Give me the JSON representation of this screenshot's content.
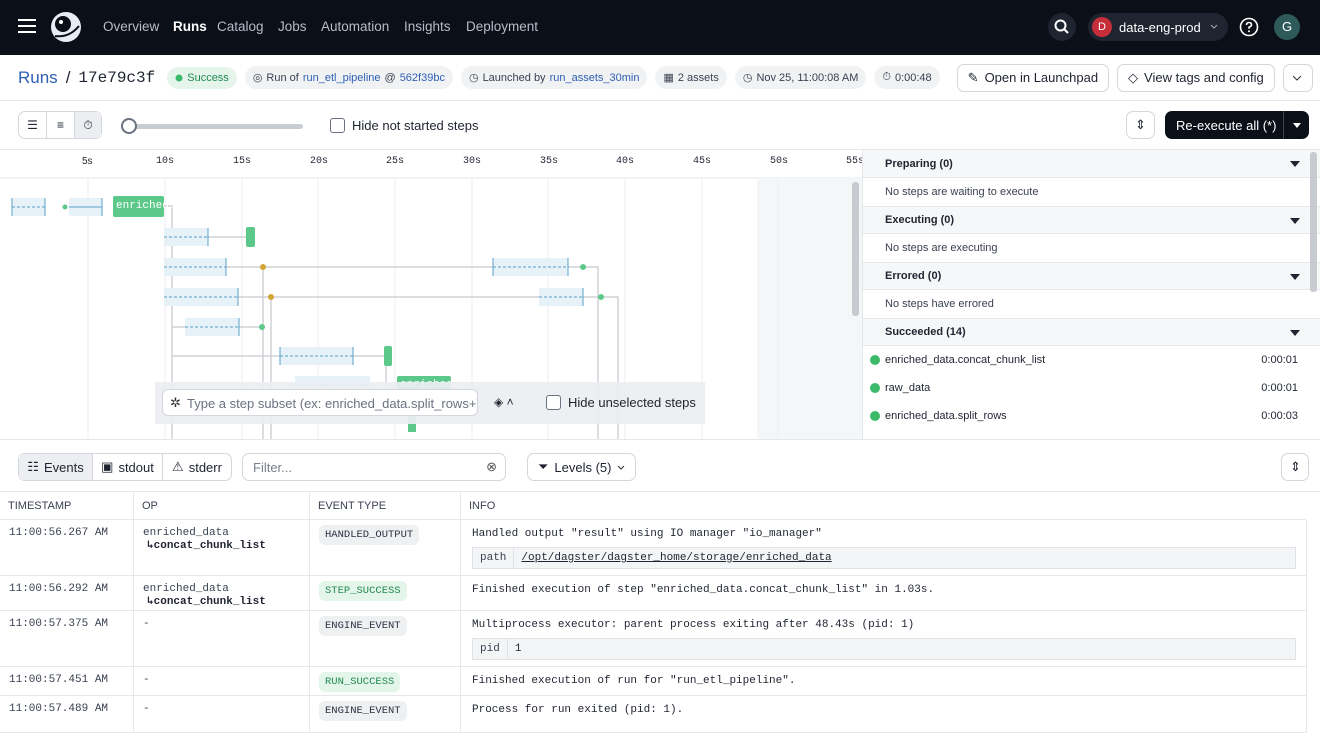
{
  "nav": {
    "items": [
      "Overview",
      "Runs",
      "Catalog",
      "Jobs",
      "Automation",
      "Insights",
      "Deployment"
    ],
    "deployment_initial": "D",
    "deployment": "data-eng-prod",
    "user_initial": "G"
  },
  "header": {
    "breadcrumb": "Runs",
    "separator": "/",
    "run_id": "17e79c3f",
    "status": "Success",
    "run_of_label": "Run of",
    "job": "run_etl_pipeline",
    "at": "@",
    "snapshot": "562f39bc",
    "launched_by_label": "Launched by",
    "launched_by": "run_assets_30min",
    "assets": "2 assets",
    "start_time": "Nov 25, 11:00:08 AM",
    "duration": "0:00:48",
    "buttons": [
      "Open in Launchpad",
      "View tags and config"
    ]
  },
  "toolbar": {
    "hide_not_started": "Hide not started steps",
    "reexecute": "Re-execute all (*)"
  },
  "gantt": {
    "ticks": [
      "5s",
      "10s",
      "15s",
      "20s",
      "25s",
      "30s",
      "35s",
      "40s",
      "45s",
      "50s",
      "55s"
    ],
    "step_labels": [
      "enriched…",
      "enriched…"
    ],
    "subset_placeholder": "Type a step subset (ex: enriched_data.split_rows+)",
    "hide_unselected": "Hide unselected steps"
  },
  "steps_panel": {
    "sections": [
      {
        "title": "Preparing (0)",
        "empty": "No steps are waiting to execute"
      },
      {
        "title": "Executing (0)",
        "empty": "No steps are executing"
      },
      {
        "title": "Errored (0)",
        "empty": "No steps have errored"
      },
      {
        "title": "Succeeded (14)"
      }
    ],
    "succeeded": [
      {
        "name": "enriched_data.concat_chunk_list",
        "duration": "0:00:01"
      },
      {
        "name": "raw_data",
        "duration": "0:00:01"
      },
      {
        "name": "enriched_data.split_rows",
        "duration": "0:00:03"
      }
    ]
  },
  "logs": {
    "tabs": [
      "Events",
      "stdout",
      "stderr"
    ],
    "filter_placeholder": "Filter...",
    "levels": "Levels (5)",
    "columns": [
      "TIMESTAMP",
      "OP",
      "EVENT TYPE",
      "INFO"
    ],
    "rows": [
      {
        "timestamp": "11:00:56.267 AM",
        "op": "enriched_data",
        "op_step": "↳concat_chunk_list",
        "event_type": "HANDLED_OUTPUT",
        "info": "Handled output \"result\" using IO manager \"io_manager\"",
        "meta_key": "path",
        "meta_value": "/opt/dagster/dagster_home/storage/enriched_data"
      },
      {
        "timestamp": "11:00:56.292 AM",
        "op": "enriched_data",
        "op_step": "↳concat_chunk_list",
        "event_type": "STEP_SUCCESS",
        "info": "Finished execution of step \"enriched_data.concat_chunk_list\" in 1.03s."
      },
      {
        "timestamp": "11:00:57.375 AM",
        "op": "-",
        "event_type": "ENGINE_EVENT",
        "info": "Multiprocess executor: parent process exiting after 48.43s (pid: 1)",
        "meta_key": "pid",
        "meta_value": "1"
      },
      {
        "timestamp": "11:00:57.451 AM",
        "op": "-",
        "event_type": "RUN_SUCCESS",
        "info": "Finished execution of run for \"run_etl_pipeline\"."
      },
      {
        "timestamp": "11:00:57.489 AM",
        "op": "-",
        "event_type": "ENGINE_EVENT",
        "info": "Process for run exited (pid: 1)."
      }
    ]
  }
}
